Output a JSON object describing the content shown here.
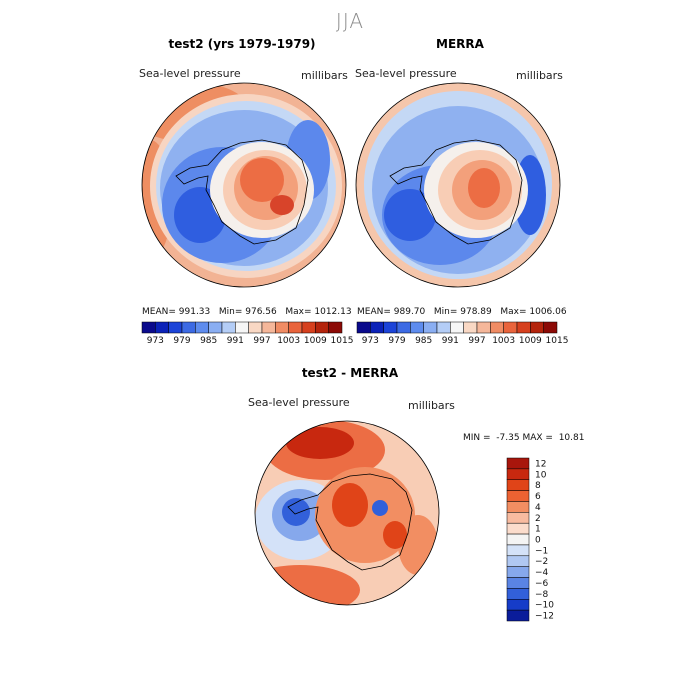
{
  "page": {
    "title": "JJA",
    "variable": "Sea-level pressure",
    "units": "millibars"
  },
  "panels": [
    {
      "id": "test2",
      "title": "test2 (yrs 1979-1979)",
      "stats": {
        "mean_label": "MEAN=",
        "mean": "991.33",
        "min_label": "Min=",
        "min": "976.56",
        "max_label": "Max=",
        "max": "1012.13"
      }
    },
    {
      "id": "merra",
      "title": "MERRA",
      "stats": {
        "mean_label": "MEAN=",
        "mean": "989.70",
        "min_label": "Min=",
        "min": "978.89",
        "max_label": "Max=",
        "max": "1006.06"
      }
    }
  ],
  "diff_panel": {
    "title": "test2 - MERRA",
    "min_label": "MIN =",
    "min": "-7.35",
    "max_label": "MAX =",
    "max": "10.81"
  },
  "chart_data": [
    {
      "type": "heatmap",
      "title": "test2 (yrs 1979-1979)",
      "subtitle": "Sea-level pressure",
      "units": "millibars",
      "projection": "south polar stereographic",
      "stats": {
        "mean": 991.33,
        "min": 976.56,
        "max": 1012.13
      },
      "colorbar_levels": [
        973,
        976,
        979,
        982,
        985,
        988,
        991,
        994,
        997,
        1000,
        1003,
        1006,
        1009,
        1012,
        1015
      ],
      "colorbar_tick_labels": [
        "973",
        "979",
        "985",
        "991",
        "997",
        "1003",
        "1009",
        "1015"
      ]
    },
    {
      "type": "heatmap",
      "title": "MERRA",
      "subtitle": "Sea-level pressure",
      "units": "millibars",
      "projection": "south polar stereographic",
      "stats": {
        "mean": 989.7,
        "min": 978.89,
        "max": 1006.06
      },
      "colorbar_levels": [
        973,
        976,
        979,
        982,
        985,
        988,
        991,
        994,
        997,
        1000,
        1003,
        1006,
        1009,
        1012,
        1015
      ],
      "colorbar_tick_labels": [
        "973",
        "979",
        "985",
        "991",
        "997",
        "1003",
        "1009",
        "1015"
      ]
    },
    {
      "type": "heatmap",
      "title": "test2 - MERRA",
      "subtitle": "Sea-level pressure",
      "units": "millibars",
      "projection": "south polar stereographic",
      "stats": {
        "min": -7.35,
        "max": 10.81
      },
      "colorbar_levels": [
        12,
        10,
        8,
        6,
        4,
        2,
        1,
        0,
        -1,
        -2,
        -4,
        -6,
        -8,
        -10,
        -12
      ],
      "colorbar_tick_labels": [
        "12",
        "10",
        "8",
        "6",
        "4",
        "2",
        "1",
        "0",
        "−1",
        "−2",
        "−4",
        "−6",
        "−8",
        "−10",
        "−12"
      ]
    }
  ],
  "colors": {
    "seq_colorbar": [
      "#0a0a8c",
      "#0b22b8",
      "#1c44d8",
      "#3c6ae4",
      "#5e8cee",
      "#8aaef2",
      "#b4cdf6",
      "#f6f6f6",
      "#f9d8c4",
      "#f5b79a",
      "#f08c64",
      "#e9643c",
      "#d6401e",
      "#b4240c",
      "#8c0a06"
    ],
    "diff_colorbar": [
      "#a8160c",
      "#c8280f",
      "#e04418",
      "#ec6232",
      "#f28e62",
      "#f8bba0",
      "#fbdccc",
      "#f4f4f4",
      "#d4e2f8",
      "#b0c8f2",
      "#86a8ec",
      "#5a84e4",
      "#3260da",
      "#163cc8",
      "#0a1c9a"
    ],
    "deep_low": "#2f5ee0",
    "low": "#5c88ec",
    "mid_low": "#8fb1f0",
    "light_blue": "#c4d8f5",
    "neutral": "#f5f0ec",
    "light_red": "#f8cdb5",
    "mid_high": "#f3a07b",
    "high": "#ec6d44",
    "peak": "#d8442a",
    "coast": "#000000"
  }
}
